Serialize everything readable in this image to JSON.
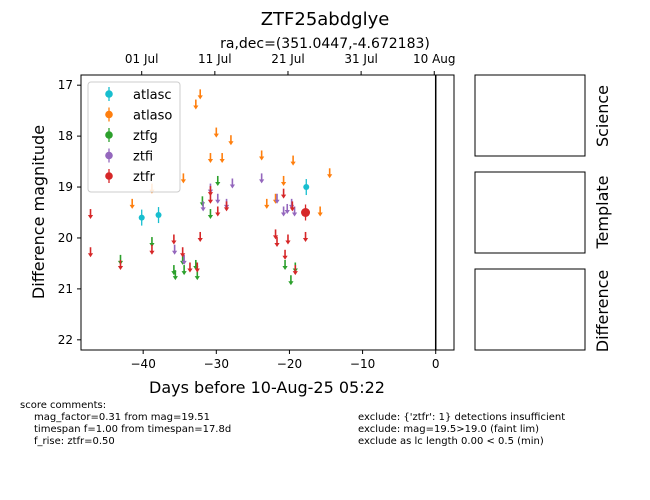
{
  "chart_data": {
    "type": "scatter",
    "title": "ZTF25abdglye",
    "subtitle": "ra,dec=(351.0447,-4.672183)",
    "xlabel": "Days before 10-Aug-25 05:22",
    "ylabel": "Difference magnitude",
    "xlim": [
      -48.5,
      2.5
    ],
    "ylim": [
      22.2,
      16.8
    ],
    "x_ticks": [
      -40,
      -30,
      -20,
      -10,
      0
    ],
    "x_tick_labels": [
      "−40",
      "−30",
      "−20",
      "−10",
      "0"
    ],
    "y_ticks": [
      17,
      18,
      19,
      20,
      21,
      22
    ],
    "top_ticks": [
      {
        "x": -40.2,
        "label": "01 Jul"
      },
      {
        "x": -30.2,
        "label": "11 Jul"
      },
      {
        "x": -20.2,
        "label": "21 Jul"
      },
      {
        "x": -10.2,
        "label": "31 Jul"
      },
      {
        "x": -0.2,
        "label": "10 Aug"
      }
    ],
    "vline_x": 0,
    "legend_position": "upper-left",
    "series": [
      {
        "name": "atlasc",
        "color": "#17becf",
        "mode": "detection",
        "points": [
          [
            -40.2,
            19.6
          ],
          [
            -37.9,
            19.55
          ],
          [
            -17.7,
            19.0
          ]
        ]
      },
      {
        "name": "atlaso",
        "color": "#ff7f0e",
        "mode": "limit",
        "points": [
          [
            -41.5,
            19.35
          ],
          [
            -38.8,
            19.05
          ],
          [
            -34.5,
            18.85
          ],
          [
            -32.8,
            17.4
          ],
          [
            -32.2,
            17.2
          ],
          [
            -30.8,
            18.45
          ],
          [
            -30.0,
            17.95
          ],
          [
            -29.2,
            18.45
          ],
          [
            -28.0,
            18.1
          ],
          [
            -23.8,
            18.4
          ],
          [
            -23.1,
            19.35
          ],
          [
            -21.9,
            19.25
          ],
          [
            -20.8,
            18.9
          ],
          [
            -19.5,
            18.5
          ],
          [
            -15.8,
            19.5
          ],
          [
            -14.5,
            18.75
          ]
        ]
      },
      {
        "name": "ztfg",
        "color": "#2ca02c",
        "mode": "limit",
        "points": [
          [
            -43.1,
            20.45
          ],
          [
            -38.8,
            20.1
          ],
          [
            -35.8,
            20.65
          ],
          [
            -35.6,
            20.75
          ],
          [
            -34.6,
            20.45
          ],
          [
            -34.4,
            20.65
          ],
          [
            -32.8,
            20.55
          ],
          [
            -32.6,
            20.75
          ],
          [
            -31.9,
            19.3
          ],
          [
            -30.8,
            19.55
          ],
          [
            -29.8,
            18.9
          ],
          [
            -20.6,
            20.55
          ],
          [
            -19.8,
            20.85
          ],
          [
            -19.2,
            20.6
          ]
        ]
      },
      {
        "name": "ztfi",
        "color": "#9467bd",
        "mode": "limit",
        "points": [
          [
            -35.7,
            20.25
          ],
          [
            -34.4,
            20.45
          ],
          [
            -31.8,
            19.4
          ],
          [
            -30.8,
            19.05
          ],
          [
            -29.8,
            19.25
          ],
          [
            -28.6,
            19.35
          ],
          [
            -27.8,
            18.95
          ],
          [
            -23.8,
            18.85
          ],
          [
            -21.7,
            19.25
          ],
          [
            -20.8,
            19.5
          ],
          [
            -20.3,
            19.45
          ],
          [
            -19.7,
            19.35
          ],
          [
            -19.3,
            19.5
          ]
        ]
      },
      {
        "name": "ztfr",
        "color": "#d62728",
        "mode": "limit",
        "points": [
          [
            -47.2,
            19.55
          ],
          [
            -47.2,
            20.3
          ],
          [
            -43.1,
            20.55
          ],
          [
            -38.8,
            20.25
          ],
          [
            -35.8,
            20.05
          ],
          [
            -34.6,
            20.3
          ],
          [
            -33.6,
            20.6
          ],
          [
            -32.6,
            20.6
          ],
          [
            -32.2,
            20.0
          ],
          [
            -30.8,
            19.25
          ],
          [
            -30.8,
            19.1
          ],
          [
            -29.8,
            19.5
          ],
          [
            -28.6,
            19.4
          ],
          [
            -21.9,
            19.95
          ],
          [
            -21.7,
            20.1
          ],
          [
            -20.8,
            19.15
          ],
          [
            -20.6,
            20.35
          ],
          [
            -20.2,
            20.05
          ],
          [
            -19.6,
            19.4
          ],
          [
            -19.2,
            20.65
          ],
          [
            -17.8,
            20.0
          ]
        ]
      },
      {
        "name": "ztfr",
        "color": "#d62728",
        "mode": "detection",
        "legend": false,
        "points": [
          [
            -17.8,
            19.5
          ]
        ]
      }
    ],
    "legend_entries": [
      {
        "name": "atlasc",
        "color": "#17becf"
      },
      {
        "name": "atlaso",
        "color": "#ff7f0e"
      },
      {
        "name": "ztfg",
        "color": "#2ca02c"
      },
      {
        "name": "ztfi",
        "color": "#9467bd"
      },
      {
        "name": "ztfr",
        "color": "#d62728"
      }
    ]
  },
  "panels": {
    "science_label": "Science",
    "template_label": "Template",
    "difference_label": "Difference"
  },
  "notes": {
    "score_header": "score comments:",
    "score_lines": [
      "mag_factor=0.31 from mag=19.51",
      "timespan f=1.00 from timespan=17.8d",
      "f_rise: ztfr=0.50"
    ],
    "exclude_lines": [
      "exclude: {'ztfr': 1} detections insufficient",
      "exclude: mag=19.5>19.0 (faint lim)",
      "exclude as lc length 0.00 < 0.5 (min)"
    ]
  }
}
